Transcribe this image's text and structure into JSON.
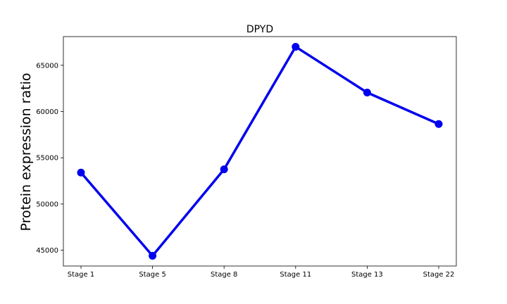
{
  "chart_data": {
    "type": "line",
    "title": "DPYD",
    "xlabel": "",
    "ylabel": "Protein expression ratio",
    "categories": [
      "Stage 1",
      "Stage 5",
      "Stage 8",
      "Stage 11",
      "Stage 13",
      "Stage 22"
    ],
    "series": [
      {
        "values": [
          53400,
          44400,
          53750,
          67000,
          62050,
          58650
        ]
      }
    ],
    "ylim": [
      43300,
      68100
    ],
    "yticks": [
      45000,
      50000,
      55000,
      60000,
      65000
    ],
    "grid": false,
    "colors": {
      "line": "#0000ee",
      "marker": "#0000ee"
    }
  }
}
